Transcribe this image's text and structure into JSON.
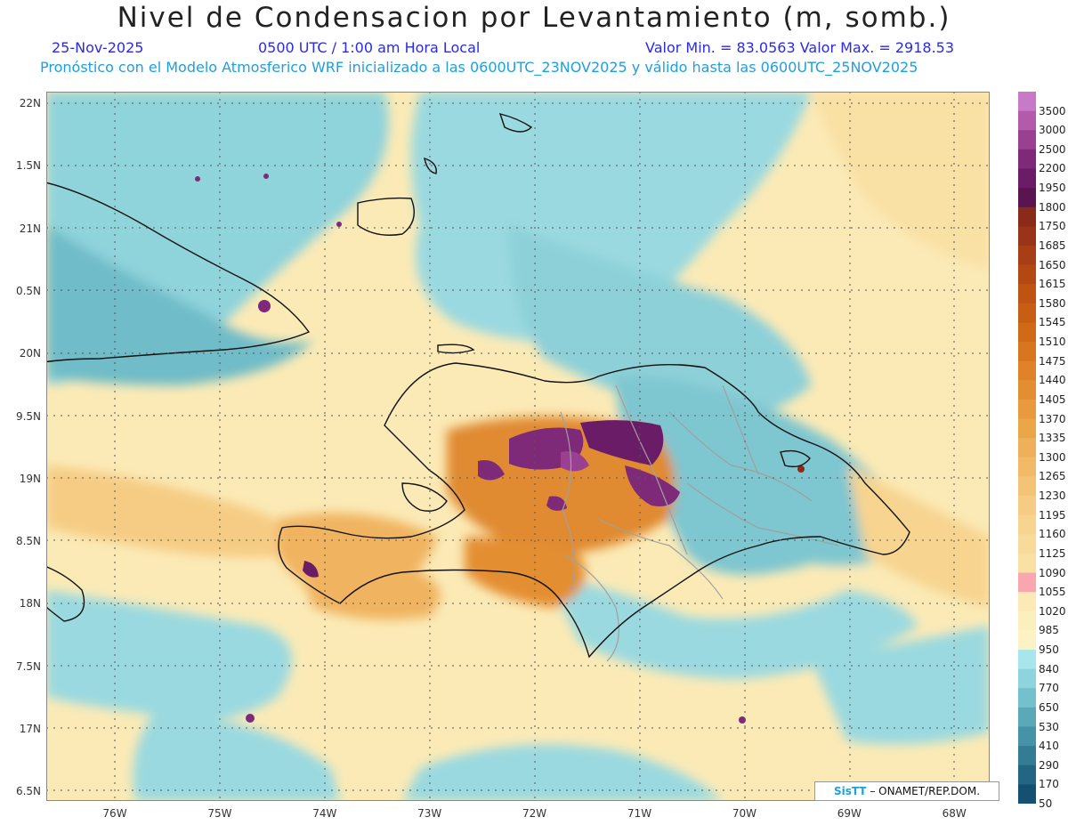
{
  "title": "Nivel de Condensacion por Levantamiento (m, somb.)",
  "date": "25-Nov-2025",
  "time": "0500 UTC / 1:00 am Hora Local",
  "min_max": "Valor Min. = 83.0563  Valor Max. = 2918.53",
  "subtitle": "Pronóstico con el Modelo Atmosferico WRF inicializado a las 0600UTC_23NOV2025 y válido hasta las  0600UTC_25NOV2025",
  "credit": {
    "logo": "SisTT",
    "text": "ONAMET/REP.DOM."
  },
  "lat_labels": [
    "22N",
    "1.5N",
    "21N",
    "0.5N",
    "20N",
    "9.5N",
    "19N",
    "8.5N",
    "18N",
    "7.5N",
    "17N",
    "6.5N"
  ],
  "lon_labels": [
    "76W",
    "75W",
    "74W",
    "73W",
    "72W",
    "71W",
    "70W",
    "69W",
    "68W"
  ],
  "colorbar": {
    "labels": [
      "3500",
      "3000",
      "2500",
      "2200",
      "1950",
      "1800",
      "1750",
      "1685",
      "1650",
      "1615",
      "1580",
      "1545",
      "1510",
      "1475",
      "1440",
      "1405",
      "1370",
      "1335",
      "1300",
      "1265",
      "1230",
      "1195",
      "1160",
      "1125",
      "1090",
      "1055",
      "1020",
      "985",
      "950",
      "840",
      "770",
      "650",
      "530",
      "410",
      "290",
      "170",
      "50"
    ],
    "colors": [
      "#c87ac8",
      "#b45aaa",
      "#9a4090",
      "#7e2a78",
      "#6a1c66",
      "#5a1450",
      "#8a2a1a",
      "#9a3418",
      "#a83e16",
      "#b44814",
      "#bf5412",
      "#c85e14",
      "#d06a18",
      "#d87620",
      "#df8228",
      "#e48e32",
      "#e89a3e",
      "#eca64a",
      "#efb05a",
      "#f2ba68",
      "#f4c476",
      "#f6cc84",
      "#f7d490",
      "#f8da9a",
      "#f9e0a4",
      "#faa6ae",
      "#fbeab6",
      "#fcefbe",
      "#fdf2c4",
      "#a8e6ec",
      "#8ed4dc",
      "#74c0cc",
      "#5aa8b8",
      "#4692a6",
      "#347c94",
      "#236682",
      "#145070"
    ]
  }
}
